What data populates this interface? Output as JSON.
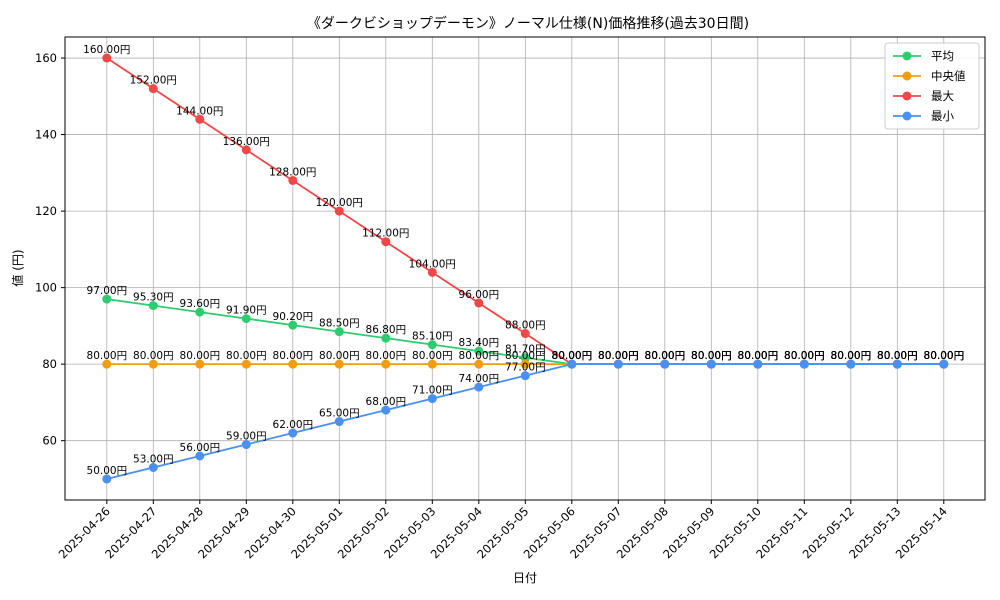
{
  "chart_data": {
    "type": "line",
    "title": "《ダークビショップデーモン》ノーマル仕様(N)価格推移(過去30日間)",
    "xlabel": "日付",
    "ylabel": "値 (円)",
    "categories": [
      "2025-04-26",
      "2025-04-27",
      "2025-04-28",
      "2025-04-29",
      "2025-04-30",
      "2025-05-01",
      "2025-05-02",
      "2025-05-03",
      "2025-05-04",
      "2025-05-05",
      "2025-05-06",
      "2025-05-07",
      "2025-05-08",
      "2025-05-09",
      "2025-05-10",
      "2025-05-11",
      "2025-05-12",
      "2025-05-13",
      "2025-05-14"
    ],
    "ylim": [
      44.5,
      165.5
    ],
    "yticks": [
      60,
      80,
      100,
      120,
      140,
      160
    ],
    "grid": true,
    "legend_position": "top-right",
    "series": [
      {
        "name": "平均",
        "color": "#2ecc71",
        "values": [
          97.0,
          95.3,
          93.6,
          91.9,
          90.2,
          88.5,
          86.8,
          85.1,
          83.4,
          81.7,
          80,
          80,
          80,
          80,
          80,
          80,
          80,
          80,
          80
        ],
        "labels": [
          "97.00円",
          "95.30円",
          "93.60円",
          "91.90円",
          "90.20円",
          "88.50円",
          "86.80円",
          "85.10円",
          "83.40円",
          "81.70円",
          "80.00円",
          "80.00円",
          "80.00円",
          "80.00円",
          "80.00円",
          "80.00円",
          "80.00円",
          "80.00円",
          "80.00円"
        ]
      },
      {
        "name": "中央値",
        "color": "#f39c12",
        "values": [
          80,
          80,
          80,
          80,
          80,
          80,
          80,
          80,
          80,
          80,
          80,
          80,
          80,
          80,
          80,
          80,
          80,
          80,
          80
        ],
        "labels": [
          "80.00円",
          "80.00円",
          "80.00円",
          "80.00円",
          "80.00円",
          "80.00円",
          "80.00円",
          "80.00円",
          "80.00円",
          "80.00円",
          "80.00円",
          "80.00円",
          "80.00円",
          "80.00円",
          "80.00円",
          "80.00円",
          "80.00円",
          "80.00円",
          "80.00円"
        ]
      },
      {
        "name": "最大",
        "color": "#f04848",
        "values": [
          160,
          152,
          144,
          136,
          128,
          120,
          112,
          104,
          96,
          88,
          80,
          80,
          80,
          80,
          80,
          80,
          80,
          80,
          80
        ],
        "labels": [
          "160.00円",
          "152.00円",
          "144.00円",
          "136.00円",
          "128.00円",
          "120.00円",
          "112.00円",
          "104.00円",
          "96.00円",
          "88.00円",
          "80.00円",
          "80.00円",
          "80.00円",
          "80.00円",
          "80.00円",
          "80.00円",
          "80.00円",
          "80.00円",
          "80.00円"
        ]
      },
      {
        "name": "最小",
        "color": "#4a90f0",
        "values": [
          50,
          53,
          56,
          59,
          62,
          65,
          68,
          71,
          74,
          77,
          80,
          80,
          80,
          80,
          80,
          80,
          80,
          80,
          80
        ],
        "labels": [
          "50.00円",
          "53.00円",
          "56.00円",
          "59.00円",
          "62.00円",
          "65.00円",
          "68.00円",
          "71.00円",
          "74.00円",
          "77.00円",
          "80.00円",
          "80.00円",
          "80.00円",
          "80.00円",
          "80.00円",
          "80.00円",
          "80.00円",
          "80.00円",
          "80.00円"
        ]
      }
    ]
  }
}
